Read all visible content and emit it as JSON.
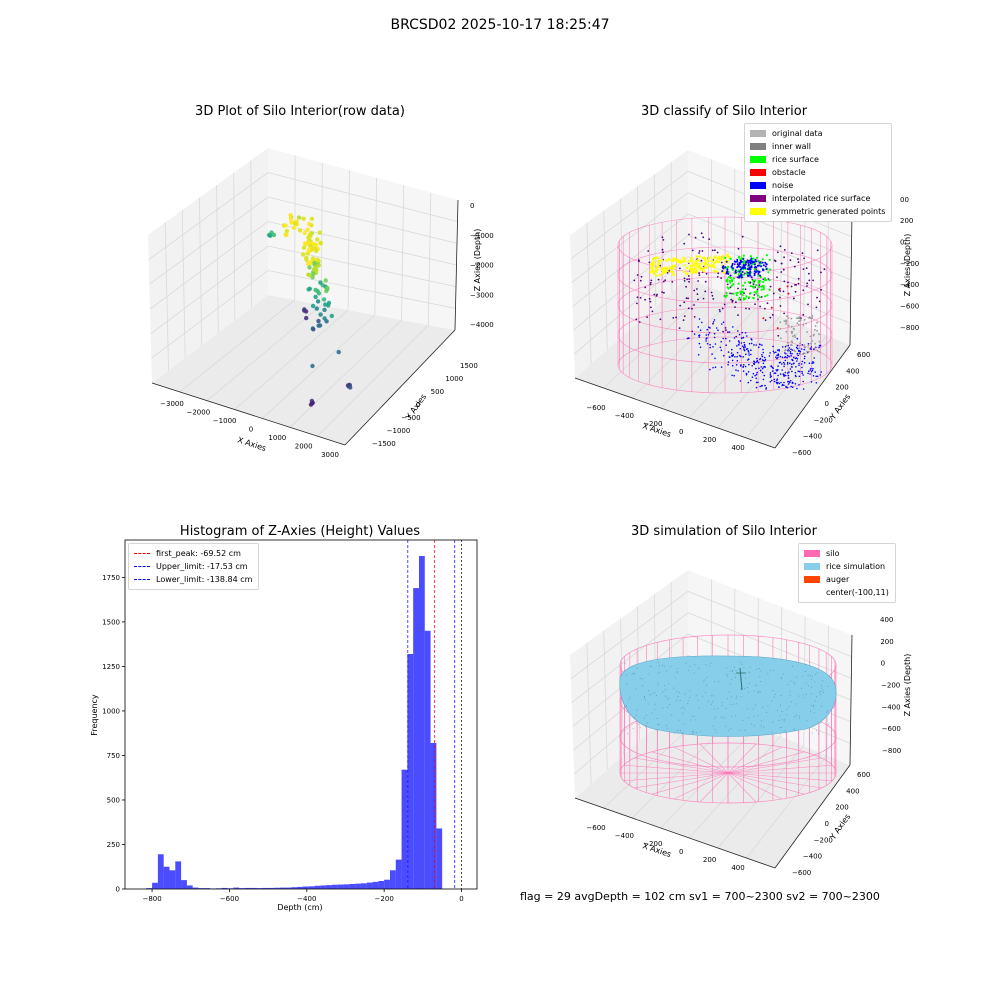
{
  "figure": {
    "title": "BRCSD02 2025-10-17 18:25:47",
    "footer": "flag = 29  avgDepth = 102 cm  sv1 = 700~2300  sv2 = 700~2300"
  },
  "chart_data": [
    {
      "type": "scatter",
      "title": "3D Plot of Silo Interior(row data)",
      "xlabel": "X Axies",
      "ylabel": "Y Axies",
      "zlabel": "Z Axies (Depth)",
      "x_ticks": [
        "−3000",
        "−2000",
        "−1000",
        "0",
        "1000",
        "2000",
        "3000"
      ],
      "y_ticks": [
        "−1500",
        "−1000",
        "−500",
        "0",
        "500",
        "1000",
        "1500"
      ],
      "z_ticks": [
        "0",
        "−1000",
        "−2000",
        "−3000",
        "−4000"
      ],
      "colormap": "viridis",
      "points_note": "color encodes depth (yellow = shallow, purple = deep)"
    },
    {
      "type": "scatter",
      "title": "3D classify of Silo Interior",
      "xlabel": "X Axies",
      "ylabel": "Y Axies",
      "zlabel": "Z Axies (Depth)",
      "x_ticks": [
        "−600",
        "−400",
        "−200",
        "0",
        "200",
        "400"
      ],
      "y_ticks": [
        "−600",
        "−400",
        "−200",
        "0",
        "200",
        "400",
        "600"
      ],
      "z_ticks": [
        "200",
        "0",
        "−200",
        "−400",
        "−600",
        "−800"
      ],
      "z_top_partial": "00",
      "legend": [
        {
          "label": "original data",
          "color": "#b3b3b3"
        },
        {
          "label": "inner wall",
          "color": "#808080"
        },
        {
          "label": "rice surface",
          "color": "#00ff00"
        },
        {
          "label": "obstacle",
          "color": "#ff0000"
        },
        {
          "label": "noise",
          "color": "#0000ff"
        },
        {
          "label": "interpolated rice surface",
          "color": "#800080"
        },
        {
          "label": "symmetric generated points",
          "color": "#ffff00"
        }
      ],
      "wireframe_color": "#ff69b4"
    },
    {
      "type": "bar",
      "title": "Histogram of Z-Axies (Height) Values",
      "xlabel": "Depth (cm)",
      "ylabel": "Frequency",
      "xlim": [
        -870,
        40
      ],
      "ylim": [
        0,
        1960
      ],
      "x_ticks": [
        -800,
        -600,
        -400,
        -200,
        0
      ],
      "x_tick_labels": [
        "−800",
        "−600",
        "−400",
        "−200",
        "0"
      ],
      "y_ticks": [
        0,
        250,
        500,
        750,
        1000,
        1250,
        1500,
        1750
      ],
      "bin_width": 15,
      "bin_start": -815,
      "counts": [
        5,
        35,
        195,
        125,
        105,
        155,
        50,
        20,
        8,
        5,
        5,
        3,
        4,
        6,
        4,
        8,
        5,
        6,
        6,
        5,
        6,
        6,
        7,
        8,
        8,
        10,
        12,
        14,
        15,
        18,
        20,
        22,
        24,
        25,
        26,
        28,
        30,
        32,
        36,
        40,
        45,
        52,
        105,
        165,
        670,
        1320,
        1690,
        1870,
        1450,
        820,
        340
      ],
      "bar_color": "#0000ff",
      "bar_opacity": 0.7,
      "lines": [
        {
          "label": "first_peak: -69.52 cm",
          "value": -69.52,
          "color": "#ff0000"
        },
        {
          "label": "Upper_limit: -17.53 cm",
          "value": -17.53,
          "color": "#0000ff"
        },
        {
          "label": "Lower_limit: -138.84 cm",
          "value": -138.84,
          "color": "#0000ff"
        }
      ],
      "extra_line": {
        "value": 0,
        "color": "#000000"
      }
    },
    {
      "type": "surface",
      "title": "3D simulation of Silo Interior",
      "xlabel": "X Axies",
      "ylabel": "Y Axies",
      "zlabel": "Z Axies (Depth)",
      "x_ticks": [
        "−600",
        "−400",
        "−200",
        "0",
        "200",
        "400"
      ],
      "y_ticks": [
        "−600",
        "−400",
        "−200",
        "0",
        "200",
        "400",
        "600"
      ],
      "z_ticks": [
        "400",
        "200",
        "0",
        "−200",
        "−400",
        "−600",
        "−800"
      ],
      "legend": [
        {
          "label": "silo",
          "color": "#ff69b4"
        },
        {
          "label": "rice simulation",
          "color": "#87ceeb"
        },
        {
          "label": "auger",
          "color": "#ff4500"
        },
        {
          "label": "center(-100,11)",
          "color": ""
        }
      ]
    }
  ]
}
